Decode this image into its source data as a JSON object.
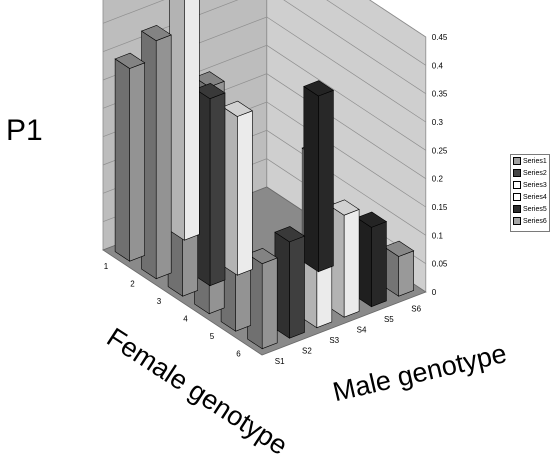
{
  "chart_data": {
    "type": "bar",
    "title": "P1",
    "x_axis_label": "Female genotype",
    "y_axis_label": "Male genotype",
    "female_categories": [
      "1",
      "2",
      "3",
      "4",
      "5",
      "6"
    ],
    "male_categories": [
      "S1",
      "S2",
      "S3",
      "S4",
      "S5",
      "S6"
    ],
    "z_ticks": [
      "0",
      "0.05",
      "0.1",
      "0.15",
      "0.2",
      "0.25",
      "0.3",
      "0.35",
      "0.4",
      "0.45"
    ],
    "zlim": [
      0,
      0.45
    ],
    "legend_position": "right",
    "series": [
      {
        "name": "Series1",
        "color": "#a0a0a0",
        "values": [
          0.34,
          0.42,
          0.21,
          0.4,
          0.22,
          0.15
        ]
      },
      {
        "name": "Series2",
        "color": "#454545",
        "values": [
          0.0,
          0.0,
          0.33,
          0.0,
          0.0,
          0.17
        ]
      },
      {
        "name": "Series3",
        "color": "#ffffff",
        "values": [
          0.45,
          0.0,
          0.28,
          0.0,
          0.0,
          0.3
        ]
      },
      {
        "name": "Series4",
        "color": "#ffffff",
        "values": [
          0.0,
          0.0,
          0.0,
          0.0,
          0.0,
          0.18
        ]
      },
      {
        "name": "Series5",
        "color": "#2c2c2c",
        "values": [
          0.0,
          0.0,
          0.0,
          0.31,
          0.0,
          0.14
        ]
      },
      {
        "name": "Series6",
        "color": "#a6a6a6",
        "values": [
          0.0,
          0.0,
          0.0,
          0.0,
          0.0,
          0.07
        ]
      }
    ]
  }
}
